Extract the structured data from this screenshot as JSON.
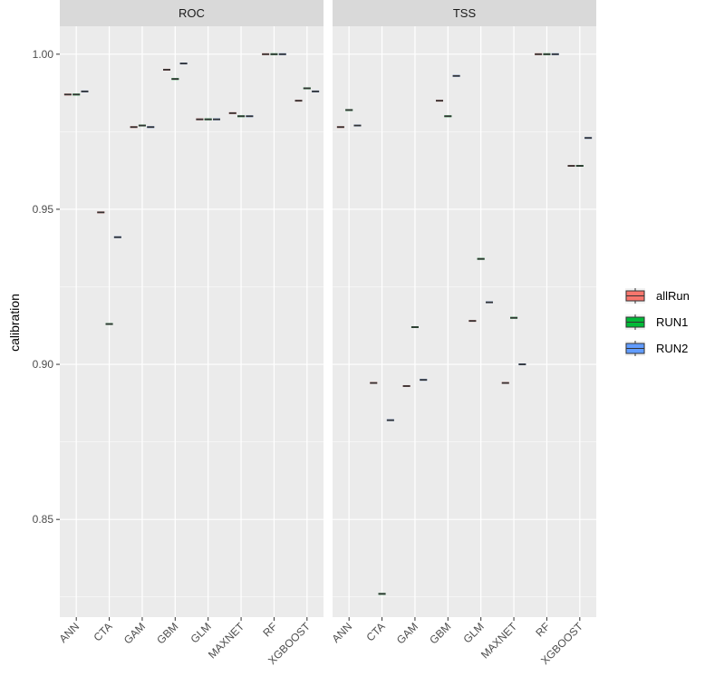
{
  "chart_data": {
    "type": "boxplot",
    "facets": [
      "ROC",
      "TSS"
    ],
    "categories": [
      "ANN",
      "CTA",
      "GAM",
      "GBM",
      "GLM",
      "MAXNET",
      "RF",
      "XGBOOST"
    ],
    "ylabel": "calibration",
    "xlabel": "",
    "ylim": [
      0.8185,
      1.009
    ],
    "yticks": [
      0.85,
      0.9,
      0.95,
      1.0
    ],
    "ytick_labels": [
      "0.85",
      "0.90",
      "0.95",
      "1.00"
    ],
    "grid": true,
    "legend_position": "right",
    "series": [
      {
        "name": "allRun",
        "color": "#F8766D"
      },
      {
        "name": "RUN1",
        "color": "#00BA38"
      },
      {
        "name": "RUN2",
        "color": "#619CFF"
      }
    ],
    "panels": [
      {
        "facet": "ROC",
        "values": {
          "allRun": [
            0.987,
            0.949,
            0.9765,
            0.995,
            0.979,
            0.981,
            1.0,
            0.985
          ],
          "RUN1": [
            0.987,
            0.913,
            0.977,
            0.992,
            0.979,
            0.98,
            1.0,
            0.989
          ],
          "RUN2": [
            0.988,
            0.941,
            0.9765,
            0.997,
            0.979,
            0.98,
            1.0,
            0.988
          ]
        }
      },
      {
        "facet": "TSS",
        "values": {
          "allRun": [
            0.9765,
            0.894,
            0.893,
            0.985,
            0.914,
            0.894,
            1.0,
            0.964
          ],
          "RUN1": [
            0.982,
            0.826,
            0.912,
            0.98,
            0.934,
            0.915,
            1.0,
            0.964
          ],
          "RUN2": [
            0.977,
            0.882,
            0.895,
            0.993,
            0.92,
            0.9,
            1.0,
            0.973
          ]
        }
      }
    ]
  }
}
